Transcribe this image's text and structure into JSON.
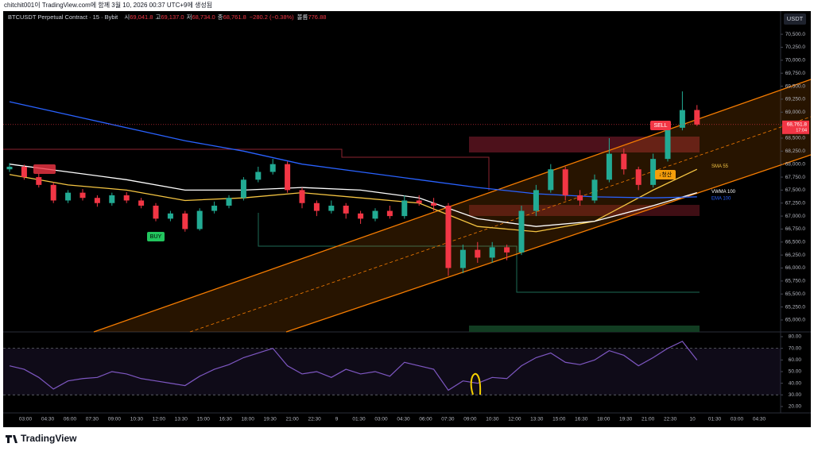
{
  "header": {
    "text": "chitchit001이 TradingView.com에 함께 3월 10, 2026 00:37 UTC+9에 생성됨"
  },
  "chart_data": {
    "type": "candlestick",
    "symbol": "BTCUSDT Perpetual Contract · 15 · Bybit",
    "ohlc_legend": [
      {
        "label": "시",
        "value": "69,041.8"
      },
      {
        "label": "고",
        "value": "69,137.0"
      },
      {
        "label": "저",
        "value": "68,734.0"
      },
      {
        "label": "종",
        "value": "68,761.8"
      }
    ],
    "change": "−280.2 (−0.38%)",
    "volume_label": "볼륨",
    "volume": "776.88",
    "currency": "USDT",
    "up_color": "#22ab94",
    "down_color": "#f23645",
    "open": [
      67900,
      67950,
      67750,
      67600,
      67300,
      67450,
      67350,
      67250,
      67400,
      67300,
      67200,
      66950,
      67050,
      66750,
      67100,
      67200,
      67350,
      67700,
      67850,
      68000,
      67500,
      67250,
      67100,
      67200,
      67050,
      66950,
      67100,
      67000,
      67300,
      67250,
      67200,
      66000,
      66350,
      66200,
      66400,
      66300,
      67100,
      67500,
      67900,
      67400,
      67300,
      67700,
      68200,
      67900,
      67600,
      68100,
      68700,
      69041.8
    ],
    "high": [
      68020,
      67990,
      67820,
      67650,
      67500,
      67520,
      67400,
      67450,
      67460,
      67350,
      67250,
      67100,
      67100,
      67150,
      67280,
      67400,
      67750,
      67950,
      68100,
      68050,
      67550,
      67300,
      67300,
      67250,
      67100,
      67150,
      67200,
      67400,
      67400,
      67350,
      67250,
      66450,
      66500,
      66500,
      66450,
      67200,
      67600,
      68000,
      67950,
      67500,
      67800,
      68500,
      68300,
      67950,
      68200,
      68800,
      69400,
      69137
    ],
    "low": [
      67850,
      67700,
      67550,
      67250,
      67250,
      67300,
      67180,
      67200,
      67250,
      67150,
      66900,
      66900,
      66700,
      66720,
      67050,
      67150,
      67300,
      67650,
      67800,
      67450,
      67150,
      67000,
      67050,
      66950,
      66850,
      66900,
      66950,
      66950,
      67200,
      67100,
      65850,
      65900,
      66100,
      66100,
      66150,
      66250,
      67000,
      67450,
      67300,
      67200,
      67250,
      67650,
      67800,
      67500,
      67550,
      68050,
      68650,
      68734
    ],
    "close": [
      67950,
      67750,
      67600,
      67300,
      67450,
      67350,
      67250,
      67400,
      67300,
      67200,
      66950,
      67050,
      66750,
      67100,
      67200,
      67350,
      67700,
      67850,
      68000,
      67500,
      67250,
      67100,
      67200,
      67050,
      66950,
      67100,
      67000,
      67300,
      67250,
      67200,
      66000,
      66350,
      66200,
      66400,
      66300,
      67100,
      67500,
      67900,
      67400,
      67300,
      67700,
      68200,
      67900,
      67600,
      68100,
      68700,
      69040,
      68761.8
    ],
    "ylim": [
      64770,
      70945
    ],
    "yticks": [
      {
        "value": 65000,
        "label": "65,000.0"
      },
      {
        "value": 65250,
        "label": "65,250.0"
      },
      {
        "value": 65500,
        "label": "65,500.0"
      },
      {
        "value": 65750,
        "label": "65,750.0"
      },
      {
        "value": 66000,
        "label": "66,000.0"
      },
      {
        "value": 66250,
        "label": "66,250.0"
      },
      {
        "value": 66500,
        "label": "66,500.0"
      },
      {
        "value": 66750,
        "label": "66,750.0"
      },
      {
        "value": 67000,
        "label": "67,000.0"
      },
      {
        "value": 67250,
        "label": "67,250.0"
      },
      {
        "value": 67500,
        "label": "67,500.0"
      },
      {
        "value": 67750,
        "label": "67,750.0"
      },
      {
        "value": 68000,
        "label": "68,000.0"
      },
      {
        "value": 68250,
        "label": "68,250.0"
      },
      {
        "value": 68500,
        "label": "68,500.0"
      },
      {
        "value": 68750,
        "label": "68,750.0"
      },
      {
        "value": 69000,
        "label": "69,000.0"
      },
      {
        "value": 69250,
        "label": "69,250.0"
      },
      {
        "value": 69500,
        "label": "69,500.0"
      },
      {
        "value": 69750,
        "label": "69,750.0"
      },
      {
        "value": 70000,
        "label": "70,000.0"
      },
      {
        "value": 70250,
        "label": "70,250.0"
      },
      {
        "value": 70500,
        "label": "70,500.0"
      }
    ],
    "last_price": {
      "value": 68761.8,
      "label": "68,761.8"
    },
    "countdown": "17:04",
    "xticks": [
      "03:00",
      "04:30",
      "06:00",
      "07:30",
      "09:00",
      "10:30",
      "12:00",
      "13:30",
      "15:00",
      "16:30",
      "18:00",
      "19:30",
      "21:00",
      "22:30",
      "9",
      "01:30",
      "03:00",
      "04:30",
      "06:00",
      "07:30",
      "09:00",
      "10:30",
      "12:00",
      "13:30",
      "15:00",
      "16:30",
      "18:00",
      "19:30",
      "21:00",
      "22:30",
      "10",
      "01:30",
      "03:00",
      "04:30"
    ],
    "overlays": [
      {
        "name": "SMA 55",
        "color": "#f5c542",
        "x": [
          0,
          4,
          8,
          12,
          16,
          20,
          24,
          28,
          32,
          36,
          40,
          44,
          47
        ],
        "values": [
          67800,
          67600,
          67500,
          67300,
          67350,
          67450,
          67350,
          67250,
          66800,
          66700,
          66900,
          67500,
          67900
        ]
      },
      {
        "name": "VWMA 100",
        "color": "#ffffff",
        "x": [
          0,
          4,
          8,
          12,
          16,
          20,
          24,
          28,
          32,
          36,
          40,
          44,
          47
        ],
        "values": [
          68000,
          67850,
          67700,
          67500,
          67500,
          67550,
          67500,
          67350,
          66950,
          66800,
          66900,
          67200,
          67450
        ]
      },
      {
        "name": "EMA 100",
        "color": "#2962ff",
        "x": [
          0,
          4,
          8,
          12,
          16,
          20,
          24,
          28,
          32,
          36,
          40,
          44,
          47
        ],
        "values": [
          69200,
          68950,
          68700,
          68450,
          68250,
          68000,
          67850,
          67700,
          67550,
          67430,
          67370,
          67350,
          67370
        ]
      }
    ],
    "annotations": [
      "BUY",
      "SELL",
      "↓청산"
    ],
    "rsi": {
      "color": "#7e57c2",
      "values": [
        55,
        52,
        45,
        35,
        42,
        44,
        45,
        50,
        48,
        44,
        42,
        40,
        38,
        46,
        52,
        56,
        62,
        66,
        70,
        55,
        48,
        50,
        45,
        52,
        48,
        50,
        46,
        58,
        55,
        52,
        34,
        42,
        40,
        45,
        44,
        55,
        62,
        66,
        58,
        56,
        60,
        68,
        64,
        55,
        62,
        70,
        76,
        60
      ],
      "ylim": [
        14.5,
        84.1
      ],
      "bands": [
        30,
        70
      ],
      "yticks": [
        {
          "value": 20,
          "label": "20.00"
        },
        {
          "value": 30,
          "label": "30.00"
        },
        {
          "value": 40,
          "label": "40.00"
        },
        {
          "value": 50,
          "label": "50.00"
        },
        {
          "value": 60,
          "label": "60.00"
        },
        {
          "value": 70,
          "label": "70.00"
        },
        {
          "value": 80,
          "label": "80.00"
        }
      ]
    }
  },
  "footer": {
    "brand": "TradingView"
  }
}
